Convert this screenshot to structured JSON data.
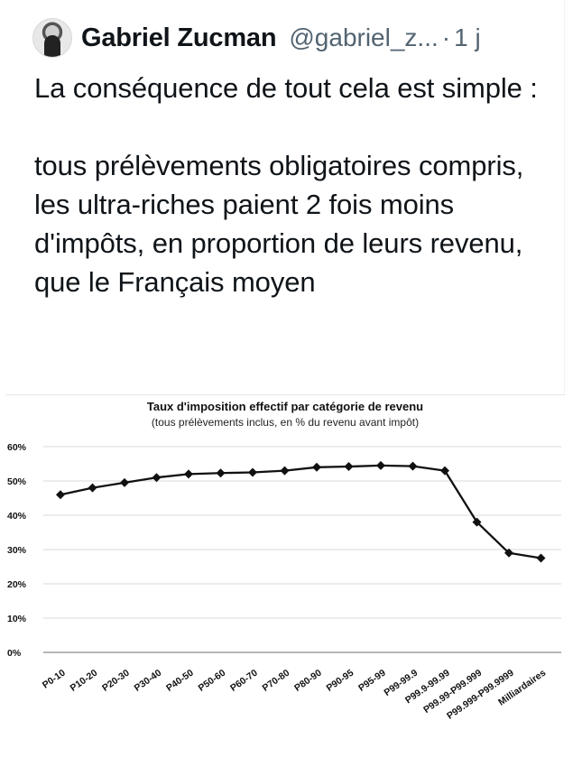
{
  "tweet": {
    "author_name": "Gabriel Zucman",
    "handle": "@gabriel_z...",
    "separator": "·",
    "time": "1 j",
    "paragraphs": [
      "La conséquence de tout cela est simple :",
      "tous prélèvements obligatoires compris, les ultra-riches paient 2 fois moins d'impôts, en proportion de leurs revenu, que le Français moyen"
    ]
  },
  "icons": {
    "avatar": "author-photo"
  },
  "chart_data": {
    "type": "line",
    "title": "Taux d'imposition effectif par catégorie de revenu",
    "subtitle": "(tous prélèvements inclus, en % du revenu avant impôt)",
    "categories": [
      "P0-10",
      "P10-20",
      "P20-30",
      "P30-40",
      "P40-50",
      "P50-60",
      "P60-70",
      "P70-80",
      "P80-90",
      "P90-95",
      "P95-99",
      "P99-99.9",
      "P99.9-99.99",
      "P99.99-P99.999",
      "P99.999-P99.9999",
      "Milliardaires"
    ],
    "values": [
      46,
      48,
      49.5,
      51,
      52,
      52.3,
      52.5,
      53,
      54,
      54.2,
      54.5,
      54.3,
      53,
      38,
      29,
      27.5
    ],
    "ylim": [
      0,
      60
    ],
    "yticks": [
      "0%",
      "10%",
      "20%",
      "30%",
      "40%",
      "50%",
      "60%"
    ],
    "grid": true,
    "colors": {
      "line": "#111111",
      "grid": "#d9d9d9"
    }
  }
}
